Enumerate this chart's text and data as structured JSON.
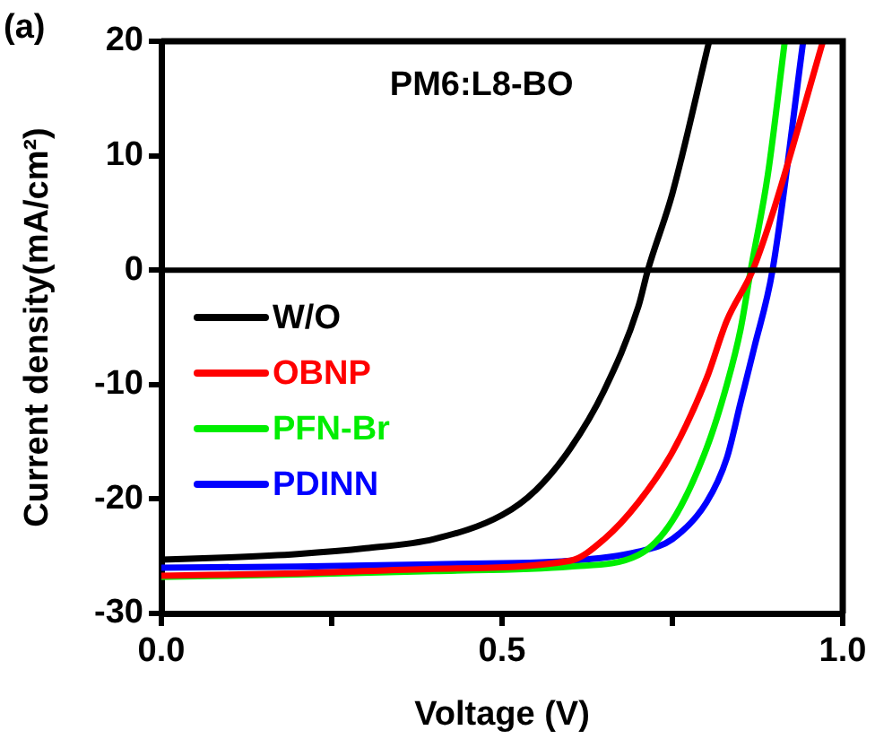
{
  "chart_data": {
    "type": "line",
    "xlabel": "Voltage (V)",
    "ylabel": "Current density(mA/cm²)",
    "annotations": [
      "(a)",
      "PM6:L8-BO"
    ],
    "xlim": [
      0,
      1
    ],
    "xticks": [
      {
        "value": 0,
        "label": "0.0"
      },
      {
        "value": 0.25,
        "label": null
      },
      {
        "value": 0.5,
        "label": "0.5"
      },
      {
        "value": 0.75,
        "label": null
      },
      {
        "value": 1,
        "label": "1.0"
      }
    ],
    "ylim": [
      -30,
      20
    ],
    "yticks": [
      -30,
      -20,
      -10,
      0,
      10,
      20
    ],
    "grid": false,
    "legend": "left",
    "marker": "none",
    "line_style": "solid",
    "ref_lines": [
      {
        "axis": "y",
        "value": 0,
        "color": "#000000"
      }
    ],
    "series": [
      {
        "name": "W/O",
        "color": "#000000",
        "x": [
          0,
          0.1,
          0.2,
          0.3,
          0.4,
          0.5,
          0.55,
          0.6,
          0.65,
          0.7,
          0.714,
          0.75,
          0.804
        ],
        "values": [
          -25.3,
          -25.1,
          -24.8,
          -24.3,
          -23.5,
          -21.4,
          -19.2,
          -15.6,
          -10.5,
          -3.2,
          0,
          6.7,
          20
        ]
      },
      {
        "name": "OBNP",
        "color": "#ff0000",
        "x": [
          0,
          0.2,
          0.4,
          0.6,
          0.65,
          0.7,
          0.75,
          0.8,
          0.83,
          0.868,
          0.9,
          0.971
        ],
        "values": [
          -26.7,
          -26.5,
          -26.1,
          -25.4,
          -23.5,
          -20.3,
          -15.9,
          -9.5,
          -4.4,
          0,
          5.5,
          20
        ]
      },
      {
        "name": "PFN-Br",
        "color": "#00ee00",
        "x": [
          0,
          0.2,
          0.4,
          0.6,
          0.7,
          0.75,
          0.8,
          0.83,
          0.85,
          0.865,
          0.89,
          0.915
        ],
        "values": [
          -26.8,
          -26.6,
          -26.3,
          -25.9,
          -24.9,
          -21.9,
          -15.6,
          -10,
          -5.2,
          0,
          8.3,
          20
        ]
      },
      {
        "name": "PDINN",
        "color": "#0000ff",
        "x": [
          0,
          0.2,
          0.4,
          0.6,
          0.7,
          0.75,
          0.8,
          0.83,
          0.85,
          0.87,
          0.897,
          0.942
        ],
        "values": [
          -26,
          -25.9,
          -25.7,
          -25.4,
          -24.6,
          -23.5,
          -20.3,
          -16.4,
          -11.6,
          -6.8,
          0,
          20
        ]
      }
    ]
  }
}
